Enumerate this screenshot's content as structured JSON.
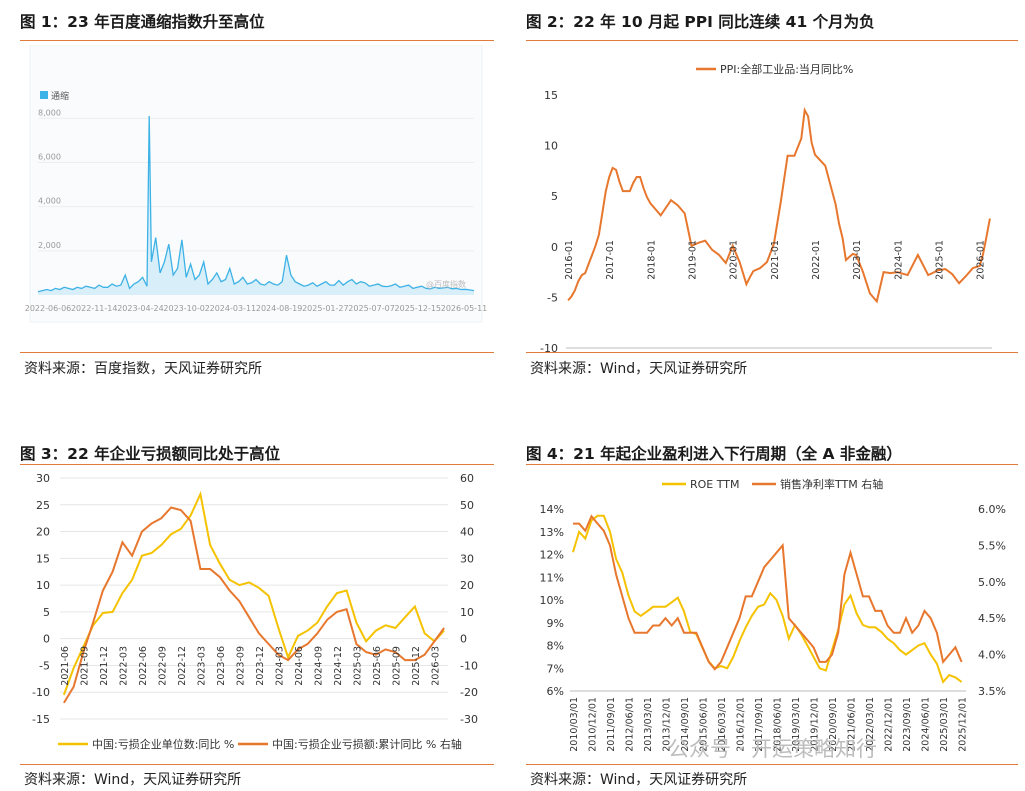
{
  "panels": {
    "p1": {
      "title": "图 1：23 年百度通缩指数升至高位",
      "source": "资料来源：百度指数，天风证券研究所"
    },
    "p2": {
      "title": "图 2：22 年 10 月起 PPI 同比连续 41 个月为负",
      "source": "资料来源：Wind，天风证券研究所"
    },
    "p3": {
      "title": "图 3：22 年企业亏损额同比处于高位",
      "source": "资料来源：Wind，天风证券研究所"
    },
    "p4": {
      "title": "图 4：21 年起企业盈利进入下行周期（全 A 非金融）",
      "source": "资料来源：Wind，天风证券研究所"
    }
  },
  "watermark": "公众号 · 开运策略知行",
  "chart_data": [
    {
      "type": "area",
      "title": "",
      "legend": [
        "通缩"
      ],
      "watermark": "@百度指数",
      "colors": {
        "line": "#3db2e6",
        "fill": "#d8eef9"
      },
      "ylim": [
        0,
        8600
      ],
      "yticks": [
        2000,
        4000,
        6000,
        8000
      ],
      "ytick_labels": [
        "2,000",
        "4,000",
        "6,000",
        "8,000"
      ],
      "xtick_labels": [
        "2022-06-06",
        "2022-11-14",
        "2023-04-24",
        "2023-10-02",
        "2024-03-11",
        "2024-08-19",
        "2025-01-27",
        "2025-07-07",
        "2025-12-15",
        "2026-05-11"
      ],
      "x": [
        0,
        0.01,
        0.02,
        0.03,
        0.04,
        0.05,
        0.06,
        0.07,
        0.08,
        0.09,
        0.1,
        0.11,
        0.12,
        0.13,
        0.14,
        0.15,
        0.16,
        0.17,
        0.18,
        0.19,
        0.2,
        0.21,
        0.22,
        0.23,
        0.24,
        0.25,
        0.255,
        0.26,
        0.27,
        0.28,
        0.29,
        0.3,
        0.31,
        0.32,
        0.33,
        0.34,
        0.35,
        0.36,
        0.37,
        0.38,
        0.39,
        0.4,
        0.41,
        0.42,
        0.43,
        0.44,
        0.45,
        0.46,
        0.47,
        0.48,
        0.49,
        0.5,
        0.51,
        0.52,
        0.53,
        0.54,
        0.55,
        0.56,
        0.57,
        0.58,
        0.59,
        0.6,
        0.61,
        0.62,
        0.63,
        0.64,
        0.65,
        0.66,
        0.67,
        0.68,
        0.69,
        0.7,
        0.71,
        0.72,
        0.73,
        0.74,
        0.75,
        0.76,
        0.77,
        0.78,
        0.79,
        0.8,
        0.81,
        0.82,
        0.83,
        0.84,
        0.85,
        0.86,
        0.87,
        0.88,
        0.89,
        0.9,
        0.91,
        0.92,
        0.93,
        0.94,
        0.95,
        0.96,
        0.97,
        0.98,
        0.99,
        1.0
      ],
      "values": [
        150,
        200,
        250,
        200,
        300,
        250,
        350,
        300,
        250,
        350,
        300,
        400,
        350,
        300,
        450,
        350,
        350,
        500,
        400,
        450,
        900,
        300,
        500,
        600,
        800,
        400,
        8100,
        1500,
        2600,
        1000,
        1500,
        2300,
        900,
        1200,
        2500,
        800,
        1400,
        700,
        900,
        1500,
        500,
        700,
        1000,
        600,
        700,
        1200,
        500,
        600,
        800,
        500,
        550,
        700,
        500,
        450,
        600,
        500,
        450,
        600,
        1800,
        900,
        600,
        500,
        400,
        450,
        550,
        400,
        500,
        600,
        450,
        450,
        650,
        450,
        600,
        700,
        500,
        600,
        550,
        400,
        450,
        500,
        400,
        380,
        420,
        500,
        350,
        400,
        450,
        300,
        350,
        400,
        300,
        280,
        350,
        300,
        320,
        350,
        280,
        300,
        250,
        260,
        230,
        200
      ]
    },
    {
      "type": "line",
      "title": "",
      "legend": [
        "PPI:全部工业品:当月同比%"
      ],
      "colors": {
        "line": "#e8772e"
      },
      "ylim": [
        -10,
        15
      ],
      "yticks": [
        -10,
        -5,
        0,
        5,
        10,
        15
      ],
      "xtick_labels": [
        "2016-01",
        "2017-01",
        "2018-01",
        "2019-01",
        "2020-01",
        "2021-01",
        "2022-01",
        "2023-01",
        "2024-01",
        "2025-01",
        "2026-01"
      ],
      "x": [
        2016.0,
        2016.083,
        2016.167,
        2016.25,
        2016.333,
        2016.417,
        2016.5,
        2016.583,
        2016.667,
        2016.75,
        2016.833,
        2016.917,
        2017.0,
        2017.083,
        2017.167,
        2017.25,
        2017.333,
        2017.417,
        2017.5,
        2017.583,
        2017.667,
        2017.75,
        2017.833,
        2017.917,
        2018.0,
        2018.25,
        2018.5,
        2018.667,
        2018.833,
        2019.0,
        2019.167,
        2019.333,
        2019.5,
        2019.667,
        2019.833,
        2020.0,
        2020.167,
        2020.333,
        2020.417,
        2020.5,
        2020.667,
        2020.833,
        2021.0,
        2021.167,
        2021.333,
        2021.5,
        2021.667,
        2021.75,
        2021.833,
        2021.917,
        2022.0,
        2022.25,
        2022.5,
        2022.583,
        2022.667,
        2022.75,
        2022.917,
        2023.0,
        2023.167,
        2023.333,
        2023.5,
        2023.667,
        2023.833,
        2024.0,
        2024.25,
        2024.5,
        2024.75,
        2025.0,
        2025.167,
        2025.333,
        2025.5,
        2025.667,
        2025.833,
        2026.0,
        2026.083,
        2026.167,
        2026.25
      ],
      "values": [
        -5.3,
        -4.9,
        -4.3,
        -3.4,
        -2.8,
        -2.6,
        -1.7,
        -0.8,
        0.1,
        1.2,
        3.3,
        5.5,
        6.9,
        7.8,
        7.6,
        6.4,
        5.5,
        5.5,
        5.5,
        6.3,
        6.9,
        6.9,
        5.8,
        4.9,
        4.3,
        3.1,
        4.6,
        4.1,
        3.3,
        0.1,
        0.4,
        0.6,
        -0.3,
        -0.8,
        -1.6,
        0.1,
        -1.5,
        -3.7,
        -3.0,
        -2.4,
        -2.1,
        -1.5,
        0.3,
        4.4,
        9.0,
        9.0,
        10.7,
        13.5,
        12.9,
        10.3,
        9.1,
        8.0,
        4.2,
        2.3,
        0.9,
        -1.3,
        -0.7,
        -0.8,
        -2.5,
        -4.6,
        -5.4,
        -2.5,
        -2.6,
        -2.5,
        -2.8,
        -0.8,
        -2.8,
        -2.3,
        -2.2,
        -2.7,
        -3.6,
        -2.9,
        -2.1,
        -1.9,
        -0.7,
        1.0,
        2.8
      ]
    },
    {
      "type": "line",
      "title": "",
      "legend": [
        "中国:亏损企业单位数:同比 %",
        "中国:亏损企业亏损额:累计同比 % 右轴"
      ],
      "ylim": [
        -15,
        30
      ],
      "yticks": [
        -15,
        -10,
        -5,
        0,
        5,
        10,
        15,
        20,
        25,
        30
      ],
      "y2lim": [
        -30,
        60
      ],
      "y2ticks": [
        -30,
        -20,
        -10,
        0,
        10,
        20,
        30,
        40,
        50,
        60
      ],
      "xtick_labels": [
        "2021-06",
        "2021-09",
        "2021-12",
        "2022-03",
        "2022-06",
        "2022-09",
        "2022-12",
        "2023-03",
        "2023-06",
        "2023-09",
        "2023-12",
        "2024-03",
        "2024-06",
        "2024-09",
        "2024-12",
        "2025-03",
        "2025-06",
        "2025-09",
        "2025-12",
        "2026-03"
      ],
      "x": [
        0,
        0.5,
        1,
        1.5,
        2,
        2.5,
        3,
        3.5,
        4,
        4.5,
        5,
        5.5,
        6,
        6.5,
        7,
        7.5,
        8,
        8.5,
        9,
        9.5,
        10,
        10.5,
        11,
        11.5,
        12,
        12.5,
        13,
        13.5,
        14,
        14.5,
        15,
        15.5,
        16,
        16.5,
        17,
        17.5,
        18,
        18.5,
        19,
        19.5
      ],
      "series": [
        {
          "name": "中国:亏损企业单位数:同比 %",
          "axis": "left",
          "color": "#f5c200",
          "values": [
            -10.5,
            -5.5,
            -1.5,
            2.5,
            4.8,
            5.0,
            8.5,
            11.0,
            15.5,
            16.0,
            17.5,
            19.5,
            20.5,
            23.0,
            27.0,
            17.5,
            14.0,
            11.0,
            10.0,
            10.5,
            9.5,
            8.0,
            2.0,
            -3.5,
            0.5,
            1.5,
            3.0,
            6.0,
            8.5,
            9.0,
            3.0,
            -0.5,
            1.5,
            2.5,
            2.0,
            4.0,
            6.0,
            1.0,
            -0.5,
            1.5
          ]
        },
        {
          "name": "中国:亏损企业亏损额:累计同比 % 右轴",
          "axis": "right",
          "color": "#e8772e",
          "values": [
            -24,
            -18,
            -5,
            6,
            18,
            25,
            36,
            31,
            40,
            43,
            45,
            49,
            48,
            44,
            26,
            26,
            23,
            18,
            14,
            8,
            2,
            -2,
            -6,
            -8,
            -4,
            -2,
            2,
            7,
            10,
            11,
            -2,
            -5,
            -6,
            -4,
            -5,
            -8,
            -8,
            -6,
            -1,
            4
          ]
        }
      ]
    },
    {
      "type": "line",
      "title": "",
      "legend": [
        "ROE TTM",
        "销售净利率TTM 右轴"
      ],
      "ylim": [
        6,
        14
      ],
      "yticks": [
        6,
        7,
        8,
        9,
        10,
        11,
        12,
        13,
        14
      ],
      "ytick_labels": [
        "6%",
        "7%",
        "8%",
        "9%",
        "10%",
        "11%",
        "12%",
        "13%",
        "14%"
      ],
      "y2lim": [
        3.5,
        6.0
      ],
      "y2ticks": [
        3.5,
        4.0,
        4.5,
        5.0,
        5.5,
        6.0
      ],
      "y2tick_labels": [
        "3.5%",
        "4.0%",
        "4.5%",
        "5.0%",
        "5.5%",
        "6.0%"
      ],
      "xtick_labels": [
        "2010/03/01",
        "2010/12/01",
        "2011/09/01",
        "2012/06/01",
        "2013/03/01",
        "2013/12/01",
        "2014/09/01",
        "2015/06/01",
        "2016/03/01",
        "2016/12/01",
        "2017/09/01",
        "2018/06/01",
        "2019/03/01",
        "2019/12/01",
        "2020/09/01",
        "2021/06/01",
        "2022/03/01",
        "2022/12/01",
        "2023/09/01",
        "2024/06/01",
        "2025/03/01",
        "2025/12/01"
      ],
      "x": [
        2010.17,
        2010.42,
        2010.67,
        2010.92,
        2011.17,
        2011.42,
        2011.67,
        2011.92,
        2012.17,
        2012.42,
        2012.67,
        2012.92,
        2013.17,
        2013.42,
        2013.67,
        2013.92,
        2014.17,
        2014.42,
        2014.67,
        2014.92,
        2015.17,
        2015.42,
        2015.67,
        2015.92,
        2016.17,
        2016.42,
        2016.67,
        2016.92,
        2017.17,
        2017.42,
        2017.67,
        2017.92,
        2018.17,
        2018.42,
        2018.67,
        2018.92,
        2019.17,
        2019.42,
        2019.67,
        2019.92,
        2020.17,
        2020.42,
        2020.67,
        2020.92,
        2021.17,
        2021.42,
        2021.67,
        2021.92,
        2022.17,
        2022.42,
        2022.67,
        2022.92,
        2023.17,
        2023.42,
        2023.67,
        2023.92,
        2024.17,
        2024.42,
        2024.67,
        2024.92,
        2025.17,
        2025.42,
        2025.67,
        2025.92
      ],
      "series": [
        {
          "name": "ROE TTM",
          "axis": "left",
          "color": "#f5c200",
          "values": [
            12.1,
            13.0,
            12.7,
            13.5,
            13.7,
            13.7,
            13.0,
            11.8,
            11.2,
            10.2,
            9.5,
            9.3,
            9.5,
            9.7,
            9.7,
            9.7,
            9.9,
            10.1,
            9.5,
            8.6,
            8.5,
            7.9,
            7.3,
            7.0,
            7.1,
            7.0,
            7.5,
            8.2,
            8.8,
            9.3,
            9.7,
            9.8,
            10.3,
            10.0,
            9.3,
            8.3,
            8.9,
            8.5,
            8.0,
            7.5,
            7.0,
            6.9,
            7.8,
            8.7,
            9.8,
            10.2,
            9.4,
            8.9,
            8.8,
            8.8,
            8.6,
            8.3,
            8.1,
            7.8,
            7.6,
            7.8,
            8.0,
            8.1,
            7.6,
            7.2,
            6.4,
            6.7,
            6.6,
            6.4
          ]
        },
        {
          "name": "销售净利率TTM 右轴",
          "axis": "right",
          "color": "#e8772e",
          "values": [
            5.8,
            5.8,
            5.7,
            5.9,
            5.8,
            5.7,
            5.5,
            5.1,
            4.8,
            4.5,
            4.3,
            4.3,
            4.3,
            4.4,
            4.4,
            4.5,
            4.4,
            4.5,
            4.3,
            4.3,
            4.3,
            4.1,
            3.9,
            3.8,
            3.9,
            4.1,
            4.3,
            4.5,
            4.8,
            4.8,
            5.0,
            5.2,
            5.3,
            5.4,
            5.5,
            4.5,
            4.4,
            4.3,
            4.2,
            4.1,
            3.9,
            3.9,
            4.0,
            4.3,
            5.1,
            5.4,
            5.1,
            4.8,
            4.8,
            4.6,
            4.6,
            4.4,
            4.3,
            4.3,
            4.5,
            4.3,
            4.4,
            4.6,
            4.5,
            4.3,
            3.9,
            4.0,
            4.1,
            3.9
          ]
        }
      ]
    }
  ]
}
